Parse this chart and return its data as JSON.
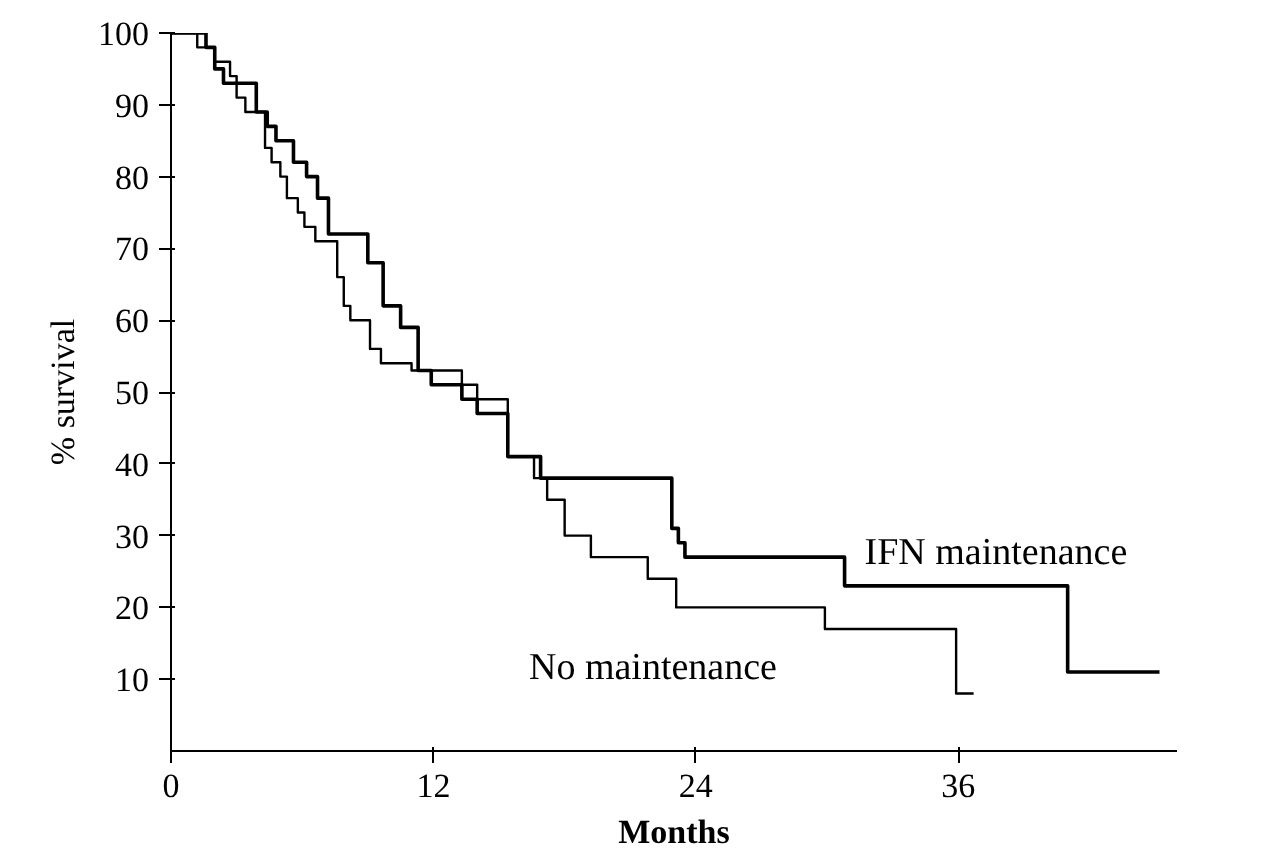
{
  "chart_data": {
    "type": "step",
    "xlabel": "Months",
    "ylabel": "% survival",
    "xlim": [
      0,
      46
    ],
    "ylim": [
      0,
      100
    ],
    "xticks": [
      0,
      12,
      24,
      36
    ],
    "yticks": [
      10,
      20,
      30,
      40,
      50,
      60,
      70,
      80,
      90,
      100
    ],
    "grid": false,
    "marker": "none",
    "line_style": "solid",
    "series": [
      {
        "name": "IFN maintenance",
        "color": "#000000",
        "x": [
          0,
          1.6,
          2.0,
          2.4,
          3.9,
          4.4,
          4.8,
          5.6,
          6.2,
          6.7,
          7.2,
          9.0,
          9.7,
          10.5,
          11.3,
          11.9,
          13.3,
          14.0,
          15.4,
          16.9,
          22.9,
          23.2,
          23.5,
          30.8,
          41.0,
          45.2
        ],
        "values": [
          100,
          98,
          95,
          93,
          89,
          87,
          85,
          82,
          80,
          77,
          72,
          68,
          62,
          59,
          53,
          51,
          49,
          47,
          41,
          38,
          31,
          29,
          27,
          23,
          11,
          11
        ]
      },
      {
        "name": "No maintenance",
        "color": "#000000",
        "x": [
          0,
          1.2,
          2.0,
          2.7,
          3.0,
          3.4,
          4.3,
          4.6,
          5.0,
          5.3,
          5.8,
          6.1,
          6.6,
          7.6,
          7.9,
          8.2,
          9.1,
          9.6,
          11.0,
          13.3,
          14.0,
          15.4,
          16.6,
          17.2,
          18.0,
          19.2,
          21.8,
          23.1,
          29.9,
          35.9,
          36.7
        ],
        "values": [
          100,
          98,
          96,
          94,
          91,
          89,
          84,
          82,
          80,
          77,
          75,
          73,
          71,
          66,
          62,
          60,
          56,
          54,
          53,
          51,
          49,
          41,
          38,
          35,
          30,
          27,
          24,
          20,
          17,
          8,
          8
        ]
      }
    ]
  }
}
